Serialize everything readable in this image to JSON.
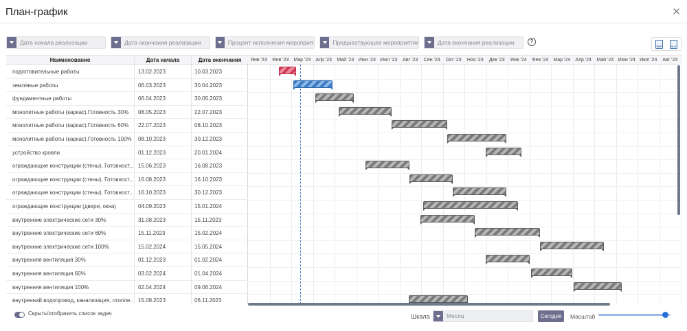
{
  "window": {
    "title": "План-график",
    "close_icon": "✕"
  },
  "filters": [
    {
      "label": "Дата начала реализации"
    },
    {
      "label": "Дата окончания реализации"
    },
    {
      "label": "Процент исполнения мероприяти"
    },
    {
      "label": "Предшествующее мероприятие"
    },
    {
      "label": "Дата окончания реализации"
    }
  ],
  "help_icon": "?",
  "export": {
    "pdf_icon": "PDF",
    "xls_icon": "XLS"
  },
  "columns": {
    "name": "Наименование",
    "start": "Дата начала",
    "end": "Дата окончания"
  },
  "months": [
    "Янв '23",
    "Фев '23",
    "Мар '23",
    "Апр '23",
    "Май '23",
    "Июн '23",
    "Июл '23",
    "Авг '23",
    "Сен '23",
    "Окт '23",
    "Ноя '23",
    "Дек '23",
    "Янв '24",
    "Фев '24",
    "Мар '24",
    "Апр '24",
    "Май '24",
    "Июн '24",
    "Июл '24",
    "Авг '24"
  ],
  "timeline": {
    "origin": "2023-01-01",
    "today": "2023-03-15"
  },
  "tasks": [
    {
      "name": "подготовительные работы",
      "start": "13.02.2023",
      "end": "10.03.2023",
      "color": "red"
    },
    {
      "name": "земляные работы",
      "start": "06.03.2023",
      "end": "30.04.2023",
      "color": "blue"
    },
    {
      "name": "фундаментные работы",
      "start": "06.04.2023",
      "end": "30.05.2023",
      "color": "gray"
    },
    {
      "name": "монолитные работы (каркас).Готовность 30%",
      "start": "08.05.2023",
      "end": "22.07.2023",
      "color": "gray"
    },
    {
      "name": "монолитные работы (каркас).Готовность 60%",
      "start": "22.07.2023",
      "end": "08.10.2023",
      "color": "gray"
    },
    {
      "name": "монолитные работы (каркас).Готовность 100%",
      "start": "08.10.2023",
      "end": "30.12.2023",
      "color": "gray"
    },
    {
      "name": "устройство кровли",
      "start": "01.12.2023",
      "end": "20.01.2024",
      "color": "gray"
    },
    {
      "name": "ограждающие конструкции (стены). Готовност...",
      "start": "15.06.2023",
      "end": "16.08.2023",
      "color": "gray"
    },
    {
      "name": "ограждающие конструкции (стены). Готовност...",
      "start": "16.08.2023",
      "end": "16.10.2023",
      "color": "gray"
    },
    {
      "name": "ограждающие конструкции (стены). Готовност...",
      "start": "16.10.2023",
      "end": "30.12.2023",
      "color": "gray"
    },
    {
      "name": "ограждающие конструкции (двери, окна)",
      "start": "04.09.2023",
      "end": "15.01.2024",
      "color": "gray"
    },
    {
      "name": "внутренние электрические сети 30%",
      "start": "31.08.2023",
      "end": "15.11.2023",
      "color": "gray"
    },
    {
      "name": "внутренние электрические сети 60%",
      "start": "15.11.2023",
      "end": "15.02.2024",
      "color": "gray"
    },
    {
      "name": "внутренние электрические сети 100%",
      "start": "15.02.2024",
      "end": "15.05.2024",
      "color": "gray"
    },
    {
      "name": "внутренняя вентиляция 30%",
      "start": "01.12.2023",
      "end": "01.02.2024",
      "color": "gray"
    },
    {
      "name": "внутренняя вентиляция 60%",
      "start": "03.02.2024",
      "end": "01.04.2024",
      "color": "gray"
    },
    {
      "name": "внутренняя вентиляция 100%",
      "start": "02.04.2024",
      "end": "09.06.2024",
      "color": "gray"
    },
    {
      "name": "внутренний водопровод, канализация, отопле...",
      "start": "15.08.2023",
      "end": "06.11.2023",
      "color": "gray"
    }
  ],
  "footer": {
    "toggle_label": "Скрыть/отобразить список задач",
    "scale_label": "Шкала",
    "scale_value": "Месяц",
    "today_button": "Сегодня",
    "zoom_label": "Масштаб",
    "zoom_value": 0.92
  }
}
